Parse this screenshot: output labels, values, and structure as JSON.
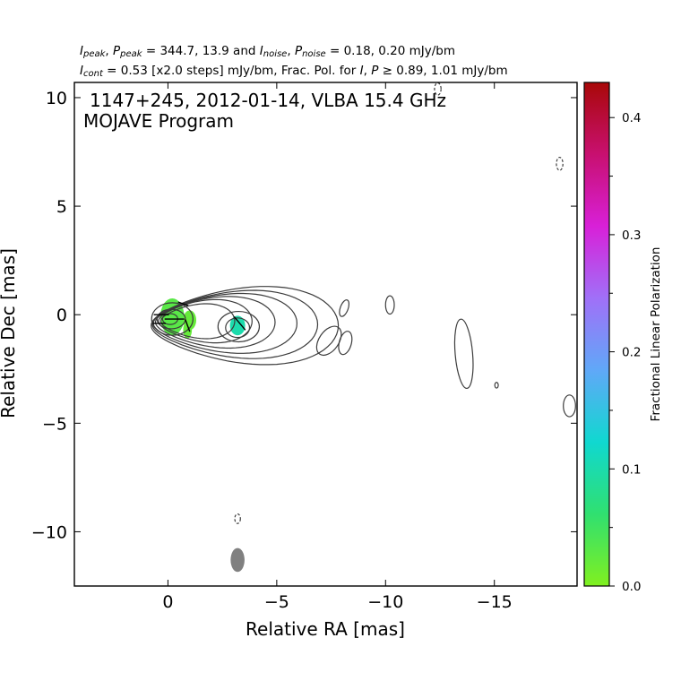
{
  "header": {
    "line1": {
      "i_peak": "I",
      "i_peak_sub": "peak",
      "p_peak": "P",
      "p_peak_sub": "peak",
      "peak_values": " = 344.7, 13.9 and ",
      "i_noise": "I",
      "i_noise_sub": "noise",
      "p_noise": "P",
      "p_noise_sub": "noise",
      "noise_values": " = 0.18, 0.20 mJy/bm"
    },
    "line2": {
      "i_cont": "I",
      "i_cont_sub": "cont",
      "cont_text": " = 0.53 [x2.0 steps] mJy/bm, Frac. Pol. for ",
      "i": "I",
      "sep": ", ",
      "p": "P",
      "geq": " ≥ 0.89, 1.01 mJy/bm"
    }
  },
  "chart_data": {
    "type": "contour",
    "title_line1": "1147+245, 2012-01-14, VLBA 15.4 GHz",
    "title_line2": "MOJAVE Program",
    "xlabel": "Relative RA [mas]",
    "ylabel": "Relative Dec [mas]",
    "xlim": [
      4.3,
      -18.8
    ],
    "ylim": [
      -12.5,
      10.7
    ],
    "xticks": [
      0,
      -5,
      -10,
      -15
    ],
    "xtick_labels": [
      "0",
      "−5",
      "−10",
      "−15"
    ],
    "yticks": [
      10,
      5,
      0,
      -5,
      -10
    ],
    "ytick_labels": [
      "10",
      "5",
      "0",
      "−5",
      "−10"
    ],
    "colorbar": {
      "label": "Fractional Linear Polarization",
      "range": [
        0.0,
        0.43
      ],
      "ticks": [
        0.0,
        0.1,
        0.2,
        0.3,
        0.4
      ],
      "tick_labels": [
        "0.0",
        "0.1",
        "0.2",
        "0.3",
        "0.4"
      ],
      "colors": [
        "#80f020",
        "#30e070",
        "#10d8d0",
        "#60a8f8",
        "#a070f8",
        "#d820d8",
        "#c81070",
        "#a80808"
      ]
    },
    "contour_color": "#3c3c3c",
    "core_contours": [
      {
        "cx": -0.1,
        "cy": -0.2,
        "rx": 0.35,
        "ry": 0.25
      },
      {
        "cx": -0.15,
        "cy": -0.2,
        "rx": 0.65,
        "ry": 0.45
      },
      {
        "cx": -0.2,
        "cy": -0.2,
        "rx": 0.95,
        "ry": 0.75
      }
    ],
    "jet_contours": [
      {
        "ox": -1.2,
        "oy": -0.3,
        "rx": 1.7,
        "ry": 1.05
      },
      {
        "ox": -1.5,
        "oy": -0.3,
        "rx": 2.15,
        "ry": 1.3
      },
      {
        "ox": -1.9,
        "oy": -0.35,
        "rx": 2.75,
        "ry": 1.55
      },
      {
        "ox": -2.3,
        "oy": -0.4,
        "rx": 3.3,
        "ry": 1.8
      },
      {
        "ox": -2.7,
        "oy": -0.45,
        "rx": 3.8,
        "ry": 2.05
      },
      {
        "ox": -3.1,
        "oy": -0.5,
        "rx": 4.3,
        "ry": 2.35
      }
    ],
    "knot_contours": [
      {
        "cx": -3.2,
        "cy": -0.6,
        "rx": 0.55,
        "ry": 0.45
      },
      {
        "cx": -3.25,
        "cy": -0.55,
        "rx": 0.95,
        "ry": 0.7
      }
    ],
    "island_contours": [
      {
        "cx": -7.4,
        "cy": -1.2,
        "rx": 0.45,
        "ry": 0.75,
        "rot": 35,
        "dash": false
      },
      {
        "cx": -8.1,
        "cy": 0.3,
        "rx": 0.18,
        "ry": 0.4,
        "rot": 20,
        "dash": false
      },
      {
        "cx": -8.15,
        "cy": -1.3,
        "rx": 0.28,
        "ry": 0.55,
        "rot": 15,
        "dash": false
      },
      {
        "cx": -10.2,
        "cy": 0.45,
        "rx": 0.2,
        "ry": 0.42,
        "rot": 0,
        "dash": false
      },
      {
        "cx": -13.6,
        "cy": -1.8,
        "rx": 0.4,
        "ry": 1.6,
        "rot": -5,
        "dash": false
      },
      {
        "cx": -15.1,
        "cy": -3.25,
        "rx": 0.08,
        "ry": 0.13,
        "rot": 0,
        "dash": false
      },
      {
        "cx": -18.45,
        "cy": -4.2,
        "rx": 0.28,
        "ry": 0.5,
        "rot": 0,
        "dash": false
      },
      {
        "cx": -18.0,
        "cy": 6.95,
        "rx": 0.15,
        "ry": 0.3,
        "rot": 0,
        "dash": true
      },
      {
        "cx": -12.4,
        "cy": 10.4,
        "rx": 0.15,
        "ry": 0.28,
        "rot": 0,
        "dash": true
      },
      {
        "cx": -3.2,
        "cy": -9.4,
        "rx": 0.13,
        "ry": 0.22,
        "rot": 0,
        "dash": true
      }
    ],
    "pol_patches": [
      {
        "cx": -0.2,
        "cy": -0.1,
        "rx": 0.55,
        "ry": 0.85,
        "frac": 0.03
      },
      {
        "cx": -1.0,
        "cy": -0.25,
        "rx": 0.3,
        "ry": 0.45,
        "frac": 0.02
      },
      {
        "cx": -0.9,
        "cy": -0.7,
        "rx": 0.2,
        "ry": 0.4,
        "frac": 0.02
      },
      {
        "cx": -3.2,
        "cy": -0.5,
        "rx": 0.35,
        "ry": 0.45,
        "frac": 0.1
      }
    ],
    "evpa_ticks": [
      {
        "x": -0.3,
        "y": -0.2,
        "angle": 0,
        "len": 0.9
      },
      {
        "x": 0.3,
        "y": 0.0,
        "angle": 0,
        "len": 0.7
      },
      {
        "x": 0.4,
        "y": -0.4,
        "angle": 0,
        "len": 0.6
      },
      {
        "x": -0.7,
        "y": 0.5,
        "angle": 20,
        "len": 0.5
      },
      {
        "x": -0.9,
        "y": -0.5,
        "angle": 70,
        "len": 0.6
      },
      {
        "x": -3.3,
        "y": -0.4,
        "angle": 50,
        "len": 0.8
      }
    ],
    "beam": {
      "x": -3.2,
      "y": -11.3,
      "rx": 0.32,
      "ry": 0.55,
      "color": "#808080"
    }
  }
}
